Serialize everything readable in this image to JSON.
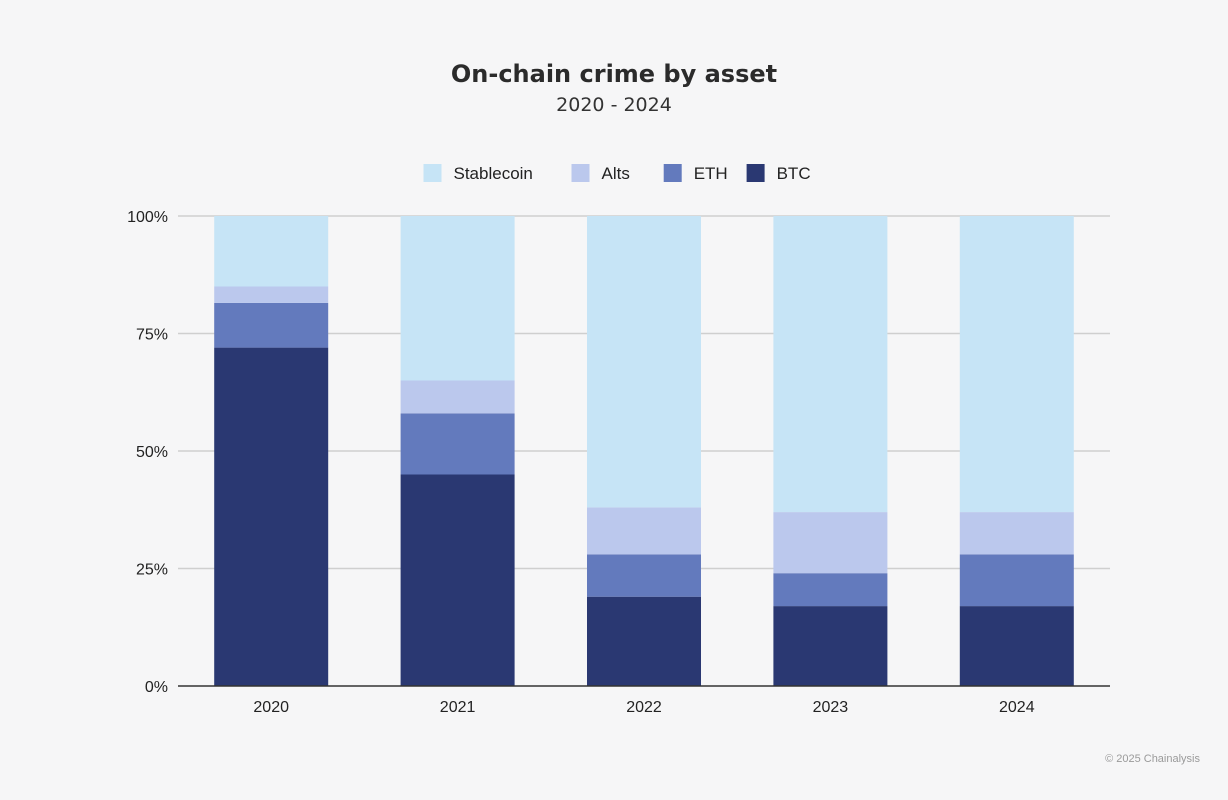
{
  "chart_data": {
    "type": "bar",
    "stacked": true,
    "title": "On-chain crime by asset",
    "subtitle": "2020 - 2024",
    "categories": [
      "2020",
      "2021",
      "2022",
      "2023",
      "2024"
    ],
    "series": [
      {
        "name": "BTC",
        "color": "#2a3872",
        "values": [
          72,
          45,
          19,
          17,
          17
        ]
      },
      {
        "name": "ETH",
        "color": "#637abd",
        "values": [
          9.5,
          13,
          9,
          7,
          11
        ]
      },
      {
        "name": "Alts",
        "color": "#bbc8ed",
        "values": [
          3.5,
          7,
          10,
          13,
          9
        ]
      },
      {
        "name": "Stablecoin",
        "color": "#c6e4f6",
        "values": [
          15,
          35,
          62,
          63,
          63
        ]
      }
    ],
    "legend_order": [
      "Stablecoin",
      "Alts",
      "ETH",
      "BTC"
    ],
    "legend_position": "top",
    "ylim": [
      0,
      100
    ],
    "yticks": [
      0,
      25,
      50,
      75,
      100
    ],
    "ytick_labels": [
      "0%",
      "25%",
      "50%",
      "75%",
      "100%"
    ],
    "grid": true
  },
  "footer": "© 2025 Chainalysis"
}
